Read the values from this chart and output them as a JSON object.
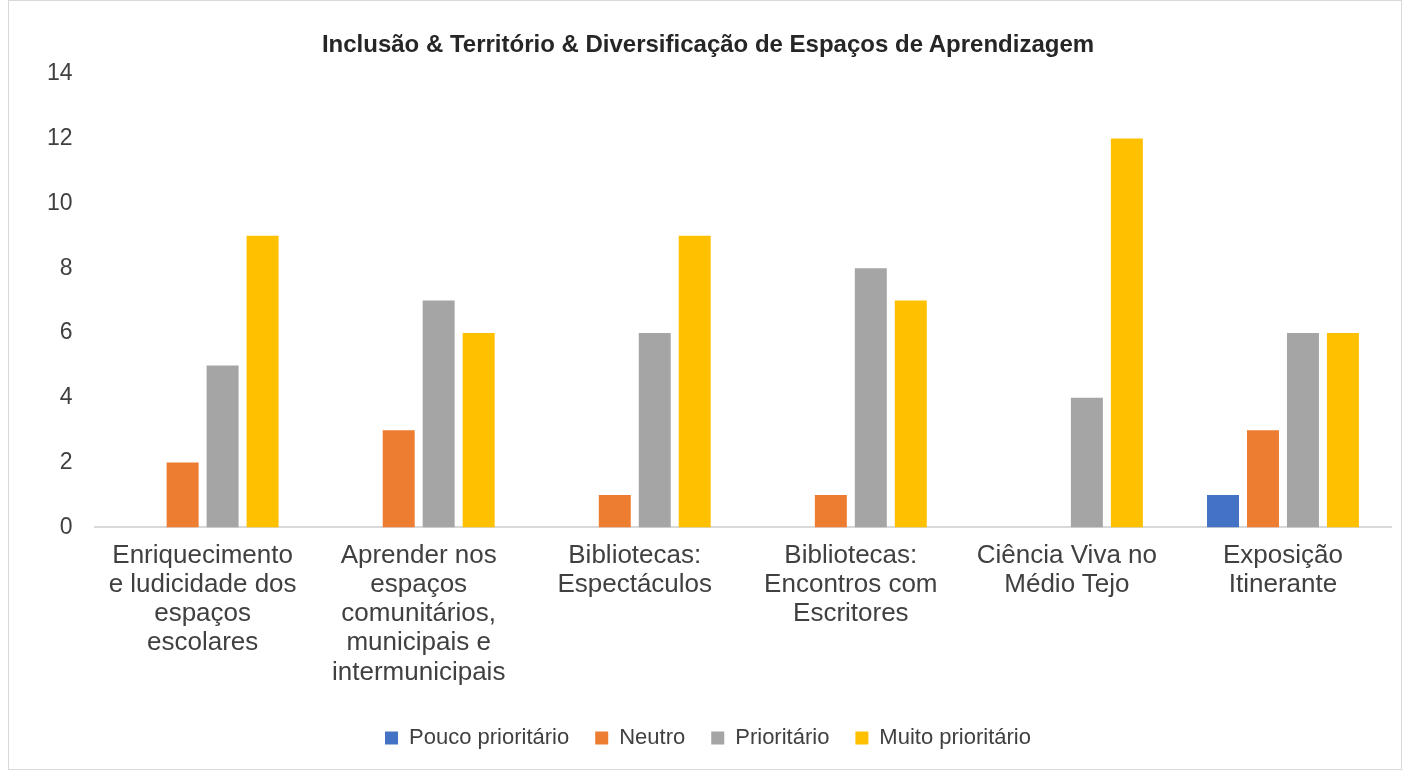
{
  "chart_data": {
    "type": "bar",
    "title": "Inclusão & Território & Diversificação de Espaços de Aprendizagem",
    "categories": [
      "Enriquecimento e ludicidade dos espaços escolares",
      "Aprender nos espaços comunitários, municipais e intermunicipais",
      "Bibliotecas: Espectáculos",
      "Bibliotecas: Encontros com Escritores",
      "Ciência Viva no Médio Tejo",
      "Exposição Itinerante"
    ],
    "series": [
      {
        "name": "Pouco prioritário",
        "color": "#4472c4",
        "values": [
          0,
          0,
          0,
          0,
          0,
          1
        ]
      },
      {
        "name": "Neutro",
        "color": "#ed7d31",
        "values": [
          2,
          3,
          1,
          1,
          0,
          3
        ]
      },
      {
        "name": "Prioritário",
        "color": "#a5a5a5",
        "values": [
          5,
          7,
          6,
          8,
          4,
          6
        ]
      },
      {
        "name": "Muito prioritário",
        "color": "#ffc000",
        "values": [
          9,
          6,
          9,
          7,
          12,
          6
        ]
      }
    ],
    "ylim": [
      0,
      14
    ],
    "yticks": [
      0,
      2,
      4,
      6,
      8,
      10,
      12,
      14
    ],
    "legend": "bottom"
  }
}
